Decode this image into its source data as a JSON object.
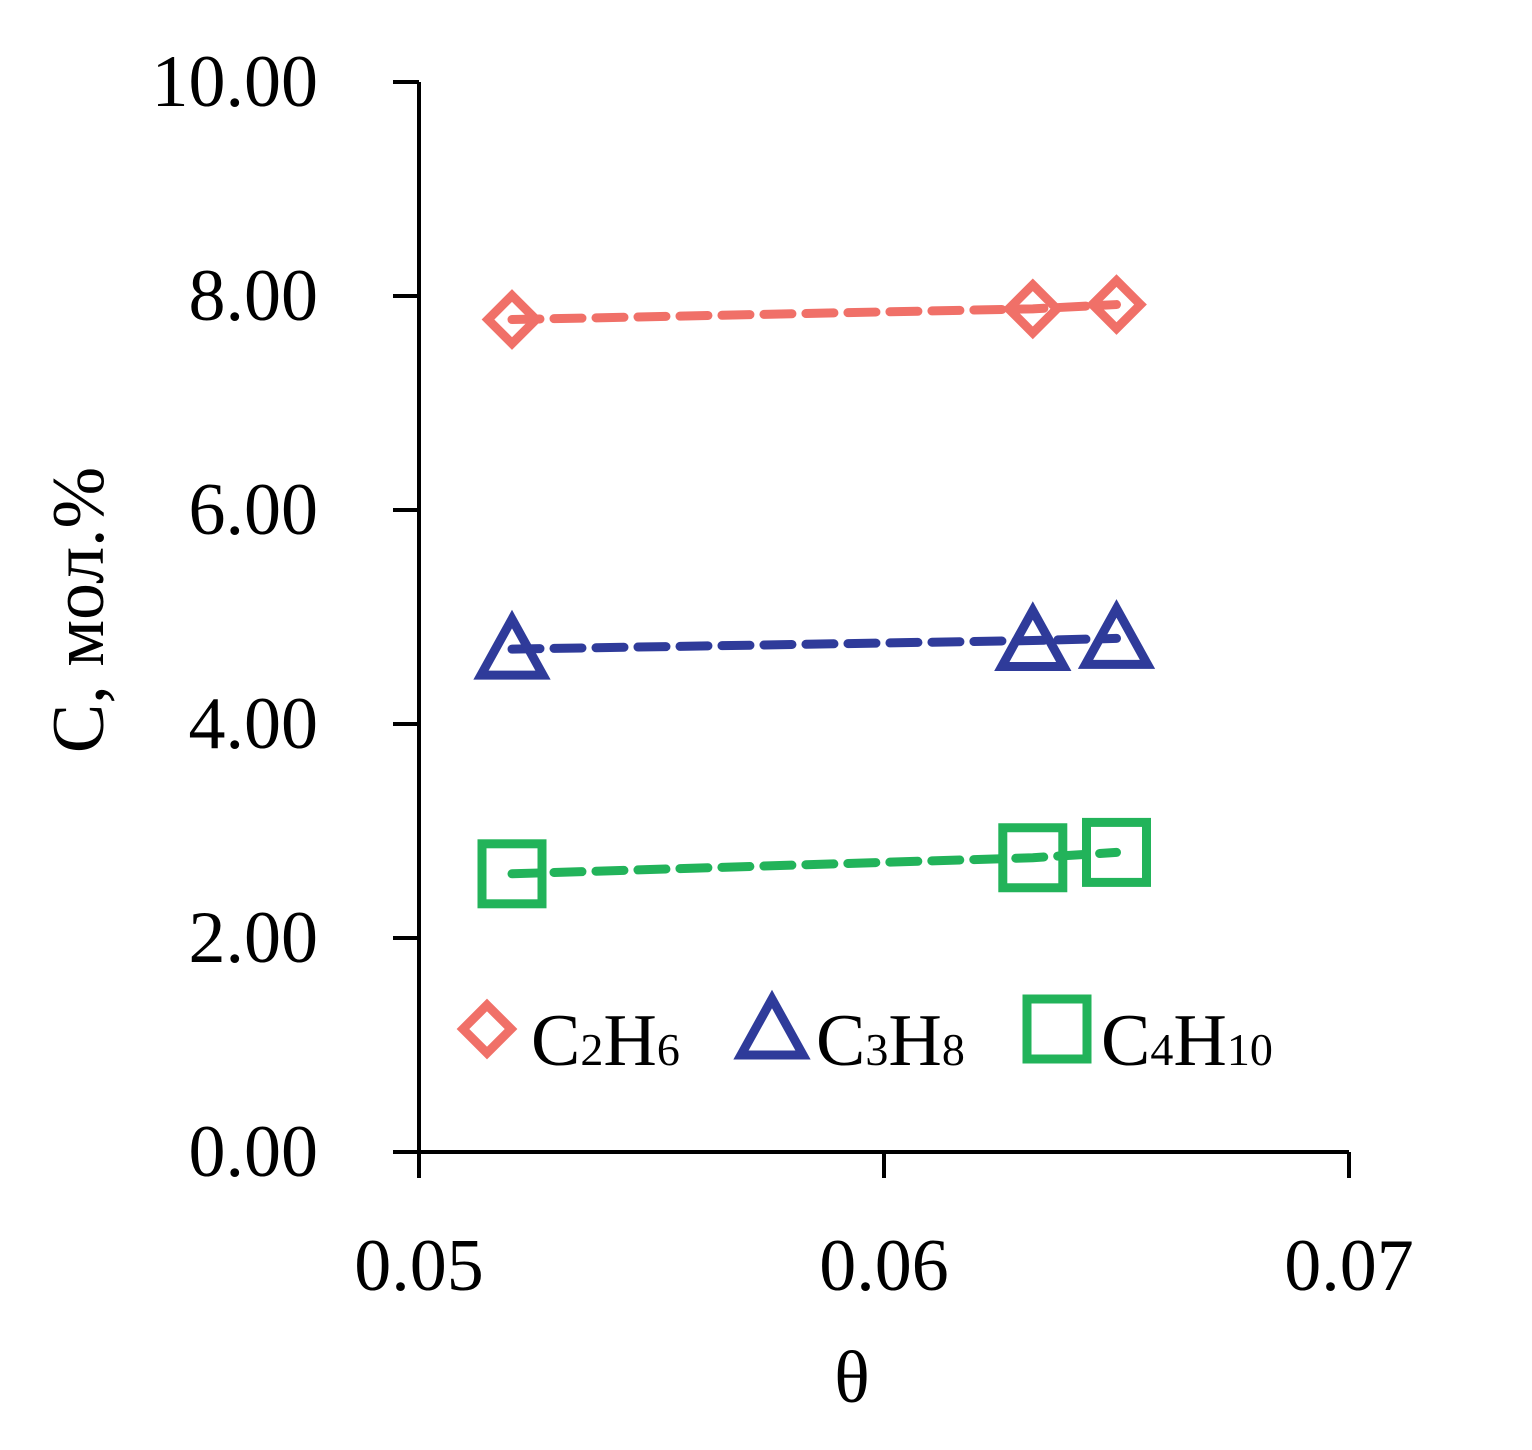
{
  "chart_data": {
    "type": "line",
    "xlabel": "θ",
    "ylabel": "C, мол.%",
    "xlim": [
      0.05,
      0.07
    ],
    "ylim": [
      0,
      10
    ],
    "x_ticks": [
      "0.05",
      "0.06",
      "0.07"
    ],
    "y_ticks": [
      "0.00",
      "2.00",
      "4.00",
      "6.00",
      "8.00",
      "10.00"
    ],
    "grid": false,
    "legend_position": "bottom-inside",
    "series": [
      {
        "name": "C2H6",
        "label_main": [
          "C",
          "H"
        ],
        "label_sub": [
          "2",
          "6"
        ],
        "marker": "diamond",
        "color": "#F07068",
        "x": [
          0.052,
          0.0632,
          0.065
        ],
        "y": [
          7.78,
          7.88,
          7.92
        ]
      },
      {
        "name": "C3H8",
        "label_main": [
          "C",
          "H"
        ],
        "label_sub": [
          "3",
          "8"
        ],
        "marker": "triangle",
        "color": "#2F3B9A",
        "x": [
          0.052,
          0.0632,
          0.065
        ],
        "y": [
          4.7,
          4.78,
          4.8
        ]
      },
      {
        "name": "C4H10",
        "label_main": [
          "C",
          "H"
        ],
        "label_sub": [
          "4",
          "10"
        ],
        "marker": "square",
        "color": "#22B35A",
        "x": [
          0.052,
          0.0632,
          0.065
        ],
        "y": [
          2.6,
          2.75,
          2.8
        ]
      }
    ]
  }
}
